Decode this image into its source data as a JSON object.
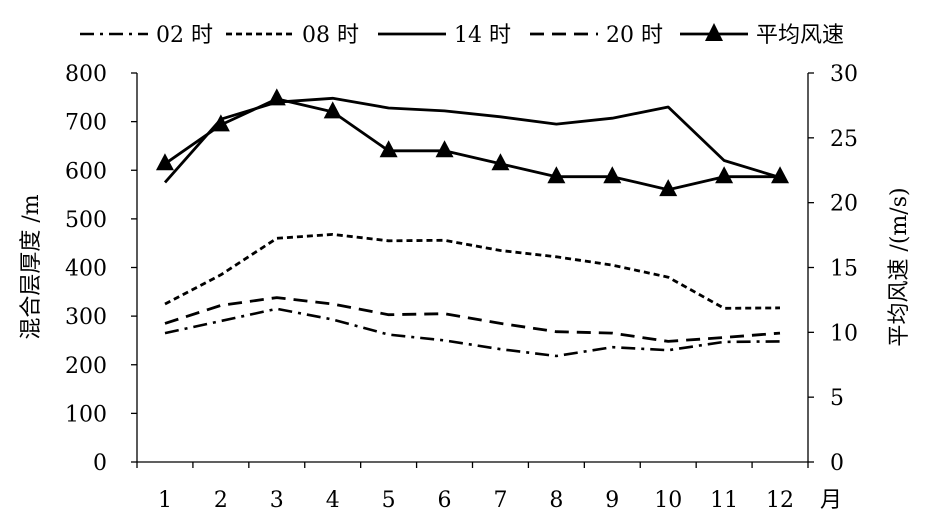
{
  "chart_data": {
    "type": "line",
    "categories": [
      "1",
      "2",
      "3",
      "4",
      "5",
      "6",
      "7",
      "8",
      "9",
      "10",
      "11",
      "12"
    ],
    "xlabel_suffix": "月",
    "ylabel_left": "混合层厚度 /m",
    "ylabel_right": "平均风速 /(m/s)",
    "ylim_left": [
      0,
      800
    ],
    "yticks_left": [
      "0",
      "100",
      "200",
      "300",
      "400",
      "500",
      "600",
      "700",
      "800"
    ],
    "ylim_right": [
      0,
      30
    ],
    "yticks_right": [
      "0",
      "5",
      "10",
      "15",
      "20",
      "25",
      "30"
    ],
    "grid": false,
    "legend_position": "top",
    "series": [
      {
        "name": "02 时",
        "axis": "left",
        "style": "dash-dot",
        "values": [
          265,
          290,
          315,
          293,
          262,
          250,
          232,
          218,
          236,
          230,
          247,
          248
        ]
      },
      {
        "name": "08 时",
        "axis": "left",
        "style": "short-dash",
        "values": [
          325,
          385,
          460,
          468,
          455,
          456,
          435,
          422,
          405,
          380,
          316,
          317
        ]
      },
      {
        "name": "14 时",
        "axis": "left",
        "style": "solid",
        "values": [
          575,
          705,
          740,
          748,
          728,
          722,
          710,
          695,
          707,
          730,
          620,
          585
        ]
      },
      {
        "name": "20 时",
        "axis": "left",
        "style": "long-dash",
        "values": [
          285,
          322,
          338,
          325,
          303,
          305,
          285,
          268,
          265,
          248,
          256,
          265
        ]
      },
      {
        "name": "平均风速",
        "axis": "right",
        "style": "solid-triangle",
        "values": [
          23,
          26,
          28,
          27,
          24,
          24,
          23,
          22,
          22,
          21,
          22,
          22
        ]
      }
    ]
  }
}
